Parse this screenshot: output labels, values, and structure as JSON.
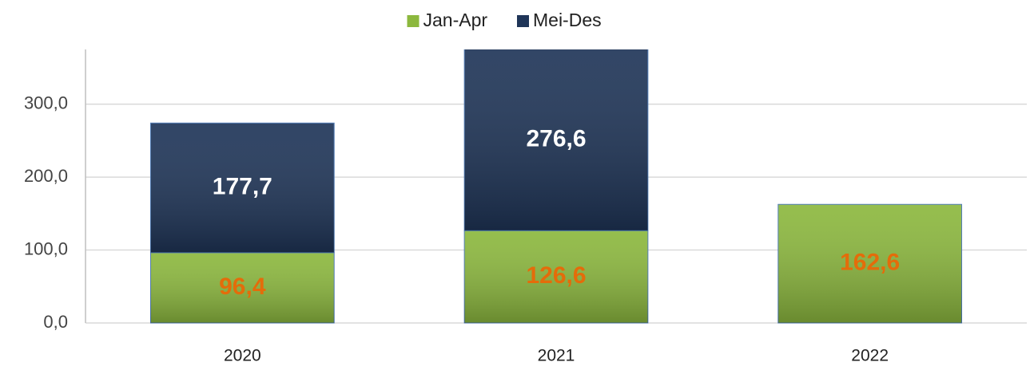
{
  "chart_data": {
    "type": "stacked_bar",
    "categories": [
      "2020",
      "2021",
      "2022"
    ],
    "series": [
      {
        "name": "Jan-Apr",
        "color": "#8cb83e",
        "values": [
          96.4,
          126.6,
          162.6
        ],
        "value_labels": [
          "96,4",
          "126,6",
          "162,6"
        ],
        "label_color": "#e46c0a"
      },
      {
        "name": "Mei-Des",
        "color": "#1f3558",
        "values": [
          177.7,
          276.6,
          null
        ],
        "value_labels": [
          "177,7",
          "276,6",
          null
        ],
        "label_color": "#ffffff"
      }
    ],
    "ylim": [
      0,
      375
    ],
    "yticks": [
      {
        "value": 0,
        "label": "0,0"
      },
      {
        "value": 100,
        "label": "100,0"
      },
      {
        "value": 200,
        "label": "200,0"
      },
      {
        "value": 300,
        "label": "300,0"
      }
    ],
    "grid": true,
    "legend": "top"
  }
}
